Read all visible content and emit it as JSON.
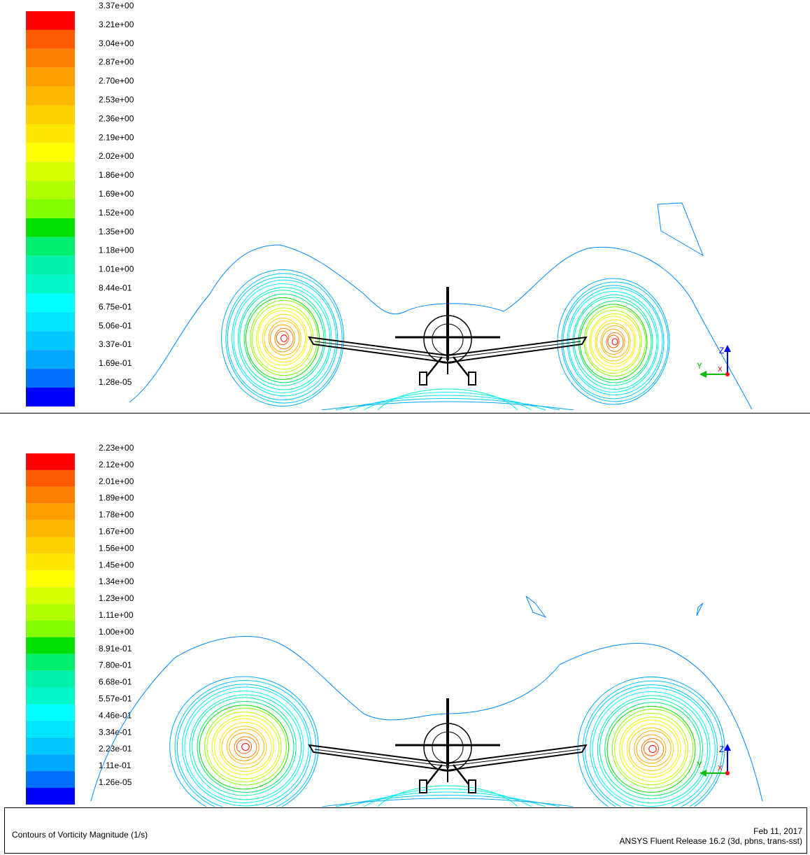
{
  "panels": [
    {
      "legend": [
        "3.37e+00",
        "3.21e+00",
        "3.04e+00",
        "2.87e+00",
        "2.70e+00",
        "2.53e+00",
        "2.36e+00",
        "2.19e+00",
        "2.02e+00",
        "1.86e+00",
        "1.69e+00",
        "1.52e+00",
        "1.35e+00",
        "1.18e+00",
        "1.01e+00",
        "8.44e-01",
        "6.75e-01",
        "5.06e-01",
        "3.37e-01",
        "1.69e-01",
        "1.28e-05"
      ]
    },
    {
      "legend": [
        "2.23e+00",
        "2.12e+00",
        "2.01e+00",
        "1.89e+00",
        "1.78e+00",
        "1.67e+00",
        "1.56e+00",
        "1.45e+00",
        "1.34e+00",
        "1.23e+00",
        "1.11e+00",
        "1.00e+00",
        "8.91e-01",
        "7.80e-01",
        "6.68e-01",
        "5.57e-01",
        "4.46e-01",
        "3.34e-01",
        "2.23e-01",
        "1.11e-01",
        "1.26e-05"
      ]
    }
  ],
  "colormap": [
    "#ff0000",
    "#ff5a00",
    "#ff8000",
    "#ffa000",
    "#ffb800",
    "#ffd000",
    "#ffe800",
    "#ffff00",
    "#d8ff00",
    "#b0ff00",
    "#80ff00",
    "#00e000",
    "#00ee70",
    "#00f0a8",
    "#00f5c8",
    "#00ffff",
    "#00e4ff",
    "#00c8ff",
    "#00a8ff",
    "#0070ff",
    "#0000ff"
  ],
  "axis": {
    "z": "Z",
    "y": "Y",
    "x": "X"
  },
  "footer": {
    "title": "Contours of Vorticity Magnitude (1/s)",
    "date": "Feb 11, 2017",
    "release": "ANSYS Fluent Release 16.2 (3d, pbns, trans-sst)"
  }
}
